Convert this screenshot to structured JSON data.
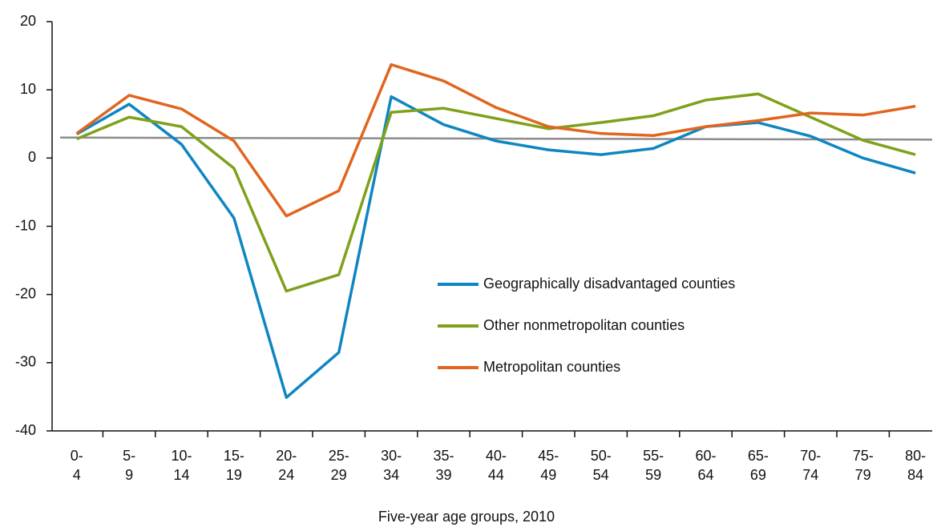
{
  "chart_data": {
    "type": "line",
    "x_label": "Five-year age groups, 2010",
    "categories": [
      "0-4",
      "5-9",
      "10-14",
      "15-19",
      "20-24",
      "25-29",
      "30-34",
      "35-39",
      "40-44",
      "45-49",
      "50-54",
      "55-59",
      "60-64",
      "65-69",
      "70-74",
      "75-79",
      "80-84"
    ],
    "series": [
      {
        "name": "Geographically disadvantaged counties",
        "color": "#0f86c1",
        "values": [
          3.5,
          7.9,
          2.0,
          -8.8,
          -35.1,
          -28.5,
          9.0,
          4.9,
          2.5,
          1.2,
          0.5,
          1.4,
          4.6,
          5.2,
          3.2,
          0,
          -2.2
        ]
      },
      {
        "name": "Other nonmetropolitan counties",
        "color": "#7fa11b",
        "values": [
          2.8,
          6.0,
          4.6,
          -1.5,
          -19.5,
          -17.1,
          6.7,
          7.3,
          5.8,
          4.3,
          5.2,
          6.2,
          8.5,
          9.4,
          6.0,
          2.6,
          0.5
        ]
      },
      {
        "name": "Metropolitan counties",
        "color": "#e0661f",
        "values": [
          3.6,
          9.2,
          7.2,
          2.5,
          -8.5,
          -4.8,
          13.7,
          11.3,
          7.4,
          4.6,
          3.6,
          3.3,
          4.6,
          5.5,
          6.6,
          6.3,
          7.6
        ]
      }
    ],
    "reference_line": {
      "color": "#8c8c8c",
      "values": [
        3.0,
        2.7
      ]
    },
    "ylim": [
      -40,
      20
    ],
    "yticks": [
      -40,
      -30,
      -20,
      -10,
      0,
      10,
      20
    ],
    "grid": false,
    "legend_position": "center-right"
  }
}
